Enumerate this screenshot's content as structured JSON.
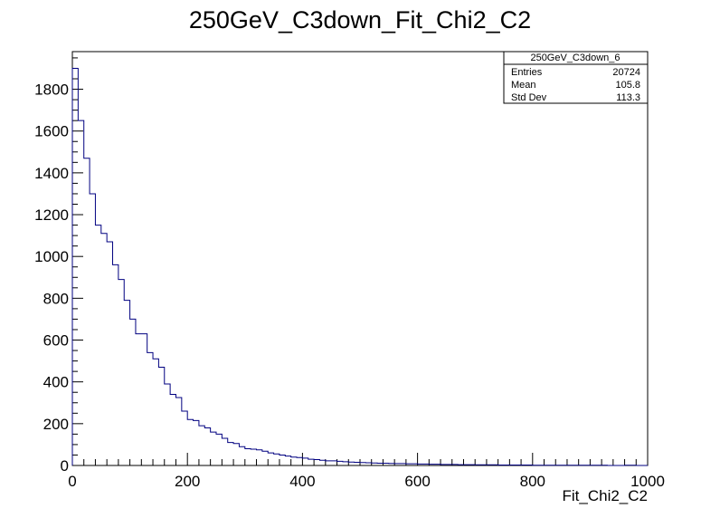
{
  "chart_data": {
    "type": "histogram",
    "title": "250GeV_C3down_Fit_Chi2_C2",
    "xlabel": "Fit_Chi2_C2",
    "ylabel": "",
    "xlim": [
      0,
      1000
    ],
    "ylim": [
      0,
      1980
    ],
    "bin_width": 10,
    "x_ticks": [
      "0",
      "200",
      "400",
      "600",
      "800",
      "1000"
    ],
    "y_ticks": [
      "0",
      "200",
      "400",
      "600",
      "800",
      "1000",
      "1200",
      "1400",
      "1600",
      "1800"
    ],
    "line_color": "#000080",
    "grid": false,
    "legend_placement": "top-right",
    "values": [
      1900,
      1650,
      1470,
      1300,
      1150,
      1110,
      1070,
      960,
      890,
      790,
      700,
      630,
      630,
      540,
      510,
      470,
      390,
      340,
      325,
      260,
      220,
      215,
      190,
      180,
      160,
      150,
      130,
      110,
      105,
      90,
      80,
      78,
      75,
      68,
      60,
      55,
      50,
      45,
      40,
      38,
      35,
      30,
      28,
      25,
      22,
      22,
      20,
      18,
      16,
      15,
      14,
      13,
      12,
      11,
      11,
      10,
      9,
      9,
      8,
      8,
      7,
      7,
      6,
      6,
      5,
      5,
      5,
      4,
      4,
      4,
      3,
      3,
      3,
      3,
      2,
      2,
      2,
      2,
      2,
      2,
      1,
      1,
      1,
      1,
      1,
      1,
      1,
      1,
      1,
      1,
      1,
      1,
      1,
      0,
      0,
      0,
      1,
      1,
      0,
      0
    ]
  },
  "stats_box": {
    "name": "250GeV_C3down_6",
    "rows": [
      {
        "label": "Entries",
        "value": "20724"
      },
      {
        "label": "Mean",
        "value": "105.8"
      },
      {
        "label": "Std Dev",
        "value": "113.3"
      }
    ]
  }
}
